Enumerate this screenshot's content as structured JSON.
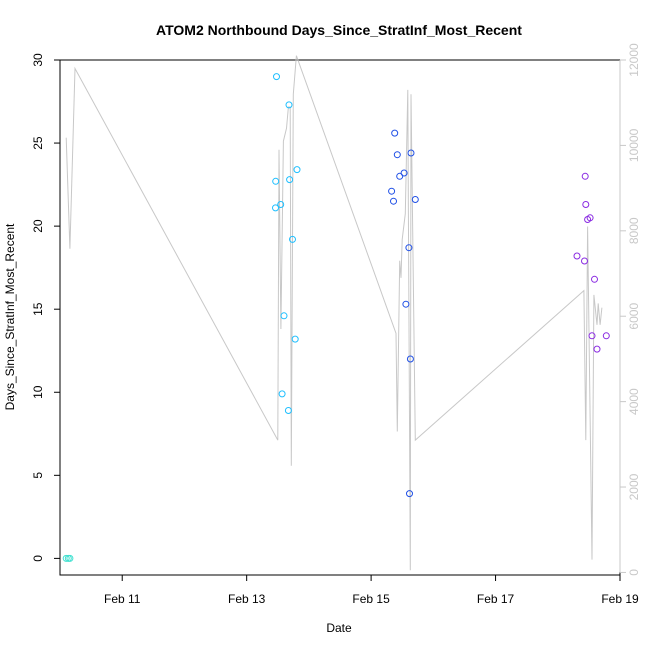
{
  "chart_data": {
    "type": "scatter",
    "title": "ATOM2 Northbound Days_Since_StratInf_Most_Recent",
    "xlabel": "Date",
    "ylabel": "Days_Since_StratInf_Most_Recent",
    "x_ticks": [
      "Feb 11",
      "Feb 13",
      "Feb 15",
      "Feb 17",
      "Feb 19"
    ],
    "y_ticks": [
      "0",
      "5",
      "10",
      "15",
      "20",
      "25",
      "30"
    ],
    "y2_ticks": [
      "0",
      "2000",
      "4000",
      "6000",
      "8000",
      "10000",
      "12000"
    ],
    "xlim": [
      "Feb 10 00:00",
      "Feb 19 00:00"
    ],
    "ylim": [
      -1,
      30
    ],
    "y2lim": [
      -60,
      12000
    ],
    "grid": false,
    "legend": "none",
    "series": [
      {
        "color": "#40e0d0",
        "points": [
          {
            "x": "Feb 10 02:24",
            "y": 0
          },
          {
            "x": "Feb 10 03:12",
            "y": 0
          },
          {
            "x": "Feb 10 03:50",
            "y": 0
          }
        ]
      },
      {
        "color": "#1ebfff",
        "points": [
          {
            "x": "Feb 13 11:31",
            "y": 29.0
          },
          {
            "x": "Feb 13 11:12",
            "y": 22.7
          },
          {
            "x": "Feb 13 13:07",
            "y": 21.3
          },
          {
            "x": "Feb 13 11:07",
            "y": 21.1
          },
          {
            "x": "Feb 13 14:24",
            "y": 14.6
          },
          {
            "x": "Feb 13 13:40",
            "y": 9.9
          },
          {
            "x": "Feb 13 16:19",
            "y": 27.3
          },
          {
            "x": "Feb 13 16:34",
            "y": 22.8
          },
          {
            "x": "Feb 13 19:26",
            "y": 23.4
          },
          {
            "x": "Feb 13 17:41",
            "y": 19.2
          },
          {
            "x": "Feb 13 18:43",
            "y": 13.2
          },
          {
            "x": "Feb 13 16:05",
            "y": 8.9
          }
        ]
      },
      {
        "color": "#2050e6",
        "points": [
          {
            "x": "Feb 15 09:07",
            "y": 25.6
          },
          {
            "x": "Feb 15 07:55",
            "y": 22.1
          },
          {
            "x": "Feb 15 08:38",
            "y": 21.5
          },
          {
            "x": "Feb 15 10:05",
            "y": 24.3
          },
          {
            "x": "Feb 15 11:02",
            "y": 23.0
          },
          {
            "x": "Feb 15 12:43",
            "y": 23.2
          },
          {
            "x": "Feb 15 15:22",
            "y": 24.4
          },
          {
            "x": "Feb 15 17:02",
            "y": 21.6
          },
          {
            "x": "Feb 15 14:34",
            "y": 18.7
          },
          {
            "x": "Feb 15 13:26",
            "y": 15.3
          },
          {
            "x": "Feb 15 15:10",
            "y": 12.0
          },
          {
            "x": "Feb 15 14:48",
            "y": 3.9
          }
        ]
      },
      {
        "color": "#8a2be2",
        "points": [
          {
            "x": "Feb 18 10:34",
            "y": 23.0
          },
          {
            "x": "Feb 18 10:48",
            "y": 21.3
          },
          {
            "x": "Feb 18 12:29",
            "y": 20.5
          },
          {
            "x": "Feb 18 11:31",
            "y": 20.4
          },
          {
            "x": "Feb 18 07:26",
            "y": 18.2
          },
          {
            "x": "Feb 18 10:19",
            "y": 17.9
          },
          {
            "x": "Feb 18 14:10",
            "y": 16.8
          },
          {
            "x": "Feb 18 13:12",
            "y": 13.4
          },
          {
            "x": "Feb 18 18:43",
            "y": 13.4
          },
          {
            "x": "Feb 18 15:07",
            "y": 12.6
          }
        ]
      }
    ],
    "secondary_line": {
      "color": "#c8c8c8",
      "axis": "right",
      "points": [
        {
          "x": "Feb 10 02:24",
          "y": 10180
        },
        {
          "x": "Feb 10 03:50",
          "y": 7580
        },
        {
          "x": "Feb 10 05:46",
          "y": 11800
        },
        {
          "x": "Feb 13 12:00",
          "y": 3100
        },
        {
          "x": "Feb 13 12:29",
          "y": 9900
        },
        {
          "x": "Feb 13 13:12",
          "y": 5700
        },
        {
          "x": "Feb 13 14:10",
          "y": 10100
        },
        {
          "x": "Feb 13 15:22",
          "y": 10400
        },
        {
          "x": "Feb 13 16:05",
          "y": 10900
        },
        {
          "x": "Feb 13 16:48",
          "y": 10900
        },
        {
          "x": "Feb 13 17:12",
          "y": 2500
        },
        {
          "x": "Feb 13 18:00",
          "y": 11200
        },
        {
          "x": "Feb 13 19:12",
          "y": 12100
        },
        {
          "x": "Feb 15 09:36",
          "y": 5600
        },
        {
          "x": "Feb 15 10:05",
          "y": 3300
        },
        {
          "x": "Feb 15 11:02",
          "y": 7300
        },
        {
          "x": "Feb 15 11:31",
          "y": 6900
        },
        {
          "x": "Feb 15 12:00",
          "y": 7800
        },
        {
          "x": "Feb 15 13:12",
          "y": 8400
        },
        {
          "x": "Feb 15 14:10",
          "y": 11300
        },
        {
          "x": "Feb 15 14:24",
          "y": 8400
        },
        {
          "x": "Feb 15 15:07",
          "y": 50
        },
        {
          "x": "Feb 15 15:22",
          "y": 11200
        },
        {
          "x": "Feb 15 17:02",
          "y": 3100
        },
        {
          "x": "Feb 18 10:05",
          "y": 6600
        },
        {
          "x": "Feb 18 10:48",
          "y": 3100
        },
        {
          "x": "Feb 18 11:31",
          "y": 8100
        },
        {
          "x": "Feb 18 13:12",
          "y": 300
        },
        {
          "x": "Feb 18 13:55",
          "y": 6500
        },
        {
          "x": "Feb 18 15:07",
          "y": 5800
        },
        {
          "x": "Feb 18 15:36",
          "y": 6300
        },
        {
          "x": "Feb 18 16:19",
          "y": 5800
        },
        {
          "x": "Feb 18 17:02",
          "y": 6200
        }
      ]
    }
  }
}
